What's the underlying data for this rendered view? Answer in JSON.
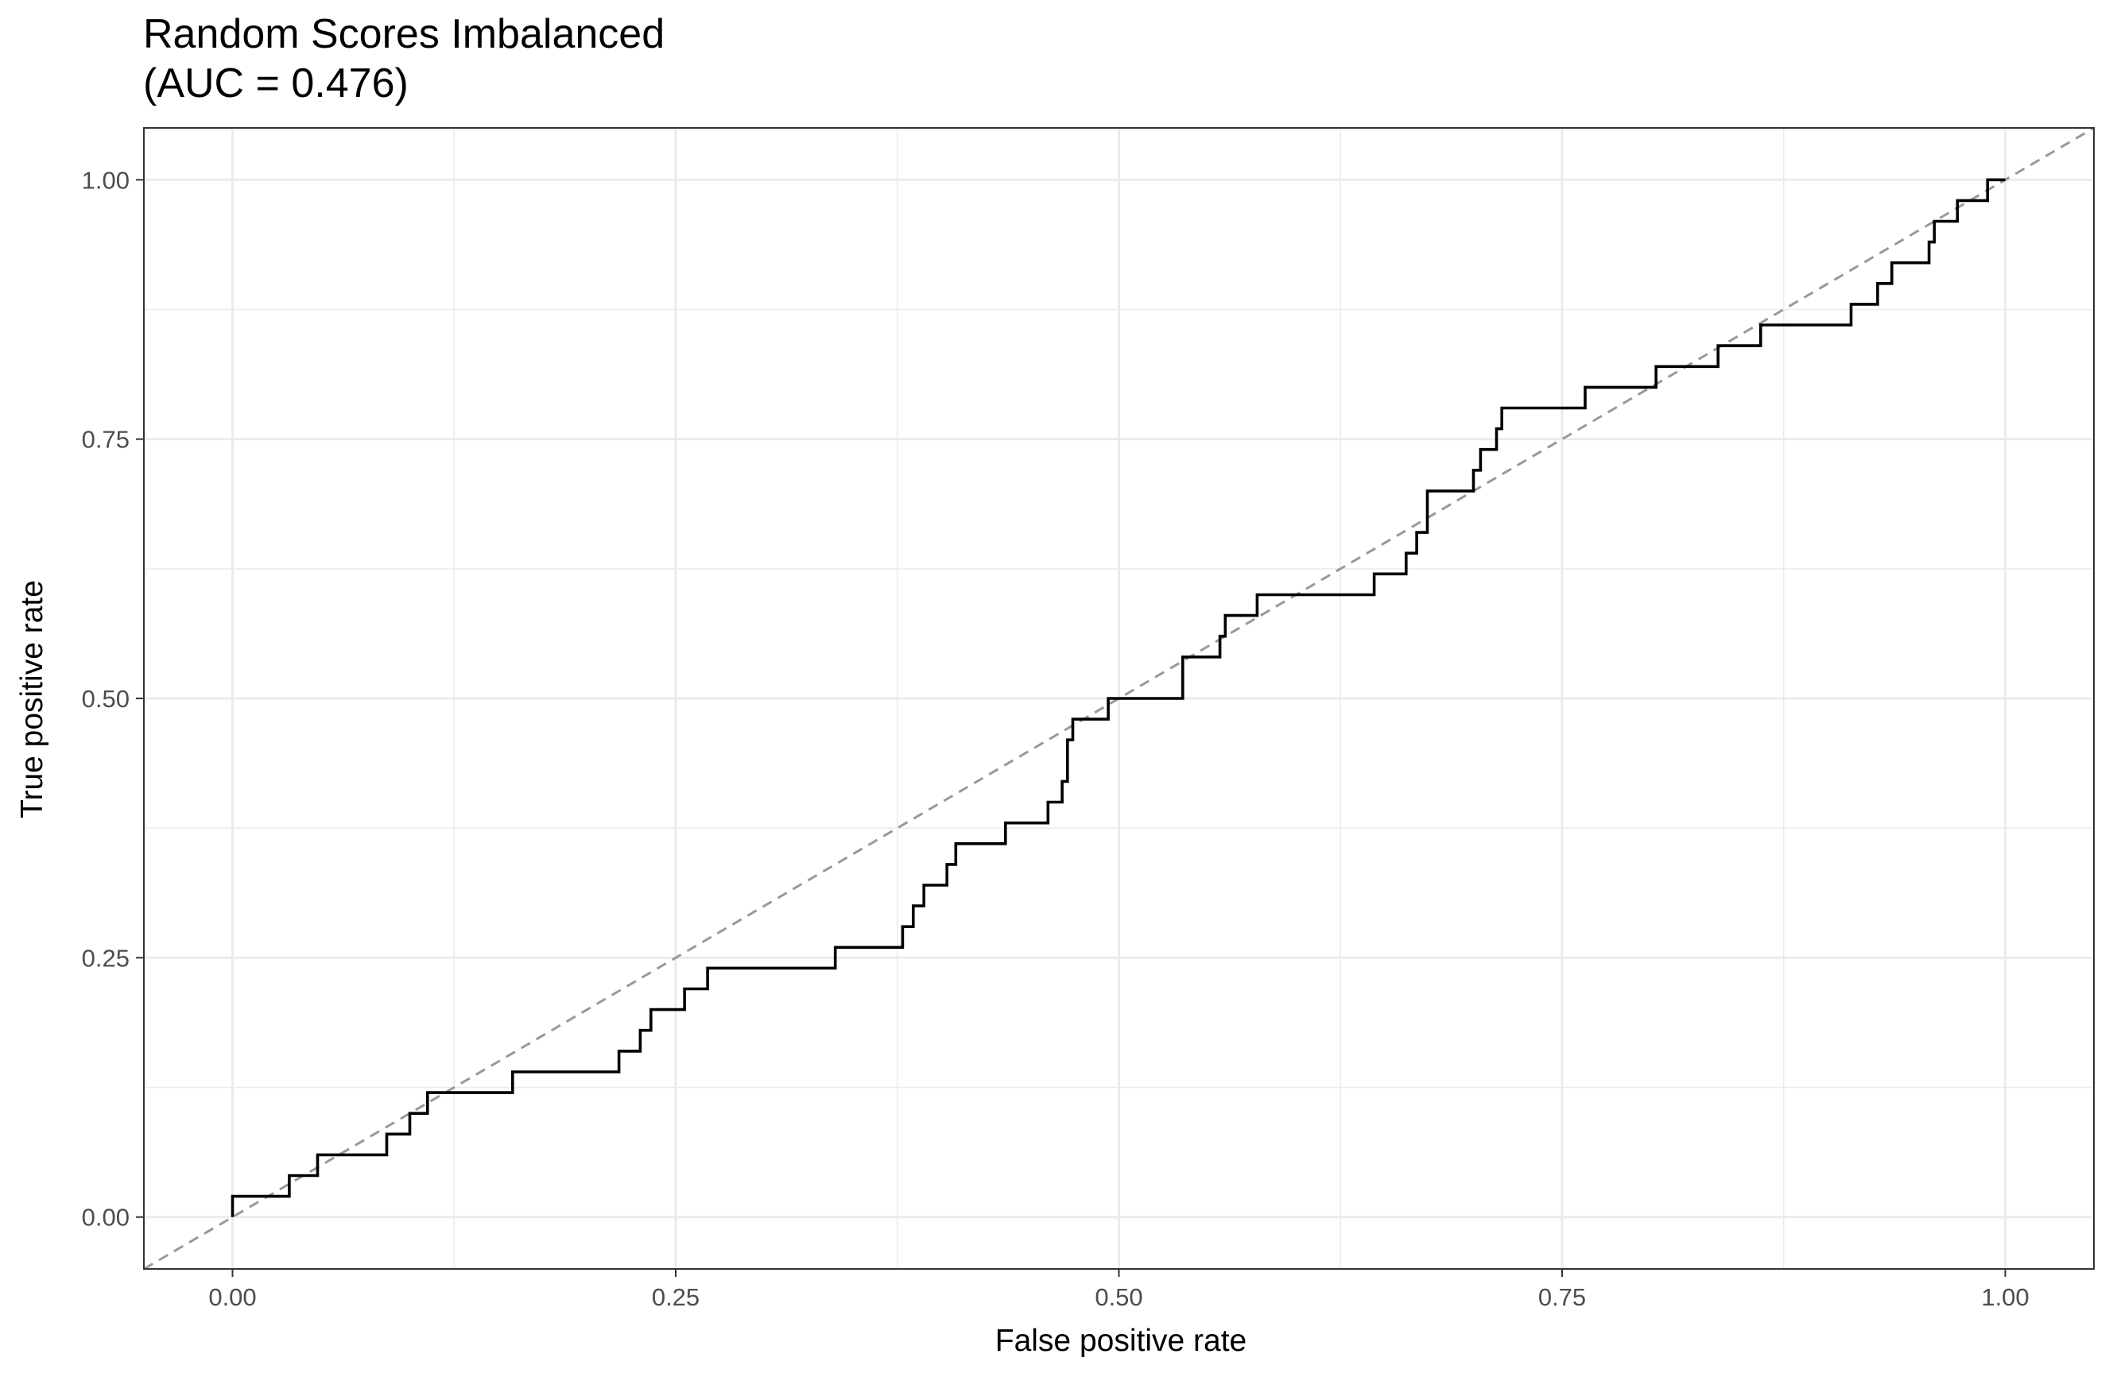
{
  "chart_data": {
    "type": "line",
    "title": "Random Scores Imbalanced",
    "subtitle": "(AUC = 0.476)",
    "xlabel": "False positive rate",
    "ylabel": "True positive rate",
    "xlim": [
      -0.05,
      1.05
    ],
    "ylim": [
      -0.05,
      1.05
    ],
    "x_ticks": [
      0,
      0.25,
      0.5,
      0.75,
      1
    ],
    "x_tick_labels": [
      "0.00",
      "0.25",
      "0.50",
      "0.75",
      "1.00"
    ],
    "y_ticks": [
      0,
      0.25,
      0.5,
      0.75,
      1
    ],
    "y_tick_labels": [
      "0.00",
      "0.25",
      "0.50",
      "0.75",
      "1.00"
    ],
    "grid": true,
    "legend": "none",
    "colors": {
      "curve": "#000000",
      "reference": "#999999",
      "grid": "#ebebeb",
      "panel_border": "#333333"
    },
    "series": [
      {
        "x": [
          0,
          0,
          0.032,
          0.032,
          0.048,
          0.048,
          0.087,
          0.087,
          0.1,
          0.1,
          0.11,
          0.11,
          0.158,
          0.158,
          0.218,
          0.218,
          0.23,
          0.23,
          0.236,
          0.236,
          0.255,
          0.255,
          0.268,
          0.268,
          0.34,
          0.34,
          0.378,
          0.378,
          0.384,
          0.384,
          0.39,
          0.39,
          0.403,
          0.403,
          0.408,
          0.408,
          0.436,
          0.436,
          0.46,
          0.46,
          0.468,
          0.468,
          0.471,
          0.471,
          0.474,
          0.474,
          0.494,
          0.494,
          0.536,
          0.536,
          0.557,
          0.557,
          0.56,
          0.56,
          0.578,
          0.578,
          0.644,
          0.644,
          0.662,
          0.662,
          0.668,
          0.668,
          0.674,
          0.674,
          0.7,
          0.7,
          0.704,
          0.704,
          0.713,
          0.713,
          0.716,
          0.716,
          0.747,
          0.747,
          0.763,
          0.763,
          0.803,
          0.803,
          0.838,
          0.838,
          0.862,
          0.862,
          0.913,
          0.913,
          0.928,
          0.928,
          0.936,
          0.936,
          0.957,
          0.957,
          0.96,
          0.96,
          0.97,
          0.97,
          0.973,
          0.973,
          0.99,
          0.99,
          1
        ],
        "y": [
          0,
          0.02,
          0.02,
          0.04,
          0.04,
          0.06,
          0.06,
          0.08,
          0.08,
          0.1,
          0.1,
          0.12,
          0.12,
          0.14,
          0.14,
          0.16,
          0.16,
          0.18,
          0.18,
          0.2,
          0.2,
          0.22,
          0.22,
          0.24,
          0.24,
          0.26,
          0.26,
          0.28,
          0.28,
          0.3,
          0.3,
          0.32,
          0.32,
          0.34,
          0.34,
          0.36,
          0.36,
          0.38,
          0.38,
          0.4,
          0.4,
          0.42,
          0.42,
          0.46,
          0.46,
          0.48,
          0.48,
          0.5,
          0.5,
          0.54,
          0.54,
          0.56,
          0.56,
          0.58,
          0.58,
          0.6,
          0.6,
          0.62,
          0.62,
          0.64,
          0.64,
          0.66,
          0.66,
          0.7,
          0.7,
          0.72,
          0.72,
          0.74,
          0.74,
          0.76,
          0.76,
          0.78,
          0.78,
          0.78,
          0.78,
          0.8,
          0.8,
          0.82,
          0.82,
          0.84,
          0.84,
          0.86,
          0.86,
          0.88,
          0.88,
          0.9,
          0.9,
          0.92,
          0.92,
          0.94,
          0.94,
          0.96,
          0.96,
          0.96,
          0.96,
          0.98,
          0.98,
          1,
          1
        ]
      }
    ],
    "reference_line": {
      "x": [
        -0.05,
        1.05
      ],
      "y": [
        -0.05,
        1.05
      ],
      "style": "dashed"
    }
  }
}
